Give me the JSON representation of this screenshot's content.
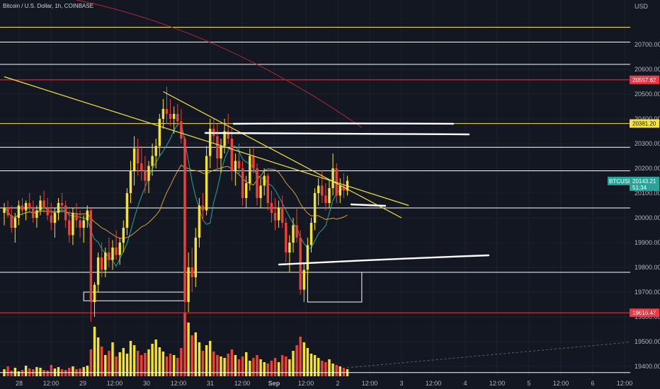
{
  "header": {
    "title": "Bitcoin / U.S. Dollar, 1h, COINBASE",
    "currency": "USD"
  },
  "colors": {
    "background": "#131722",
    "bull": "#f5e32a",
    "bear": "#ef4136",
    "grid": "#1e222d",
    "white_line": "#ffffff",
    "yellow_line": "#f6e33c",
    "red_line": "#f23645",
    "teal_ma": "#26a69a",
    "orange_ma": "#d7a032",
    "red_ma": "#b22833"
  },
  "chart_data": {
    "type": "candlestick",
    "ylim": [
      19360,
      20880
    ],
    "y_ticks": [
      20700,
      20600,
      20500,
      20400,
      20300,
      20200,
      20100,
      20000,
      19900,
      19800,
      19700,
      19600,
      19500,
      19400
    ],
    "x_ticks": [
      "28",
      "12:00",
      "29",
      "12:00",
      "30",
      "12:00",
      "31",
      "12:00",
      "Sep",
      "12:00",
      "2",
      "12:00",
      "3",
      "12:00",
      "4",
      "12:00",
      "5",
      "12:00",
      "6",
      "12:00"
    ],
    "symbol_badge": {
      "label": "BTCUSD",
      "price": "20143.21",
      "countdown": "51:34"
    },
    "price_badges": [
      {
        "value": 20557.62,
        "label": "20557.62",
        "color": "#f23645"
      },
      {
        "value": 20381.2,
        "label": "20381.20",
        "color": "#f6e33c"
      },
      {
        "value": 19616.47,
        "label": "19616.47",
        "color": "#f23645"
      }
    ],
    "horizontal_lines": [
      {
        "value": 20770,
        "color": "#f6e33c"
      },
      {
        "value": 20710,
        "color": "#ffffff"
      },
      {
        "value": 20620,
        "color": "#ffffff"
      },
      {
        "value": 20557.62,
        "color": "#f23645"
      },
      {
        "value": 20381.2,
        "color": "#f6e33c"
      },
      {
        "value": 20285,
        "color": "#ffffff"
      },
      {
        "value": 20190,
        "color": "#ffffff"
      },
      {
        "value": 20040,
        "color": "#ffffff"
      },
      {
        "value": 19780,
        "color": "#ffffff"
      },
      {
        "value": 19616.47,
        "color": "#f23645"
      },
      {
        "value": 19375,
        "color": "#ffffff"
      }
    ],
    "candles": [
      [
        20020,
        20060,
        19970,
        20040
      ],
      [
        20040,
        20070,
        20000,
        20010
      ],
      [
        20010,
        20050,
        19940,
        19960
      ],
      [
        19960,
        20020,
        19900,
        20000
      ],
      [
        20000,
        20070,
        19970,
        20050
      ],
      [
        20050,
        20080,
        20010,
        20030
      ],
      [
        20030,
        20070,
        19990,
        20060
      ],
      [
        20060,
        20100,
        20020,
        20040
      ],
      [
        20040,
        20070,
        19980,
        20000
      ],
      [
        20000,
        20050,
        19960,
        20030
      ],
      [
        20030,
        20090,
        20010,
        20070
      ],
      [
        20070,
        20110,
        20020,
        20040
      ],
      [
        20040,
        20080,
        19990,
        20010
      ],
      [
        20010,
        20060,
        19950,
        19980
      ],
      [
        19980,
        20040,
        19920,
        20020
      ],
      [
        20020,
        20080,
        19990,
        20060
      ],
      [
        20060,
        20100,
        20020,
        20050
      ],
      [
        20050,
        20070,
        19960,
        19990
      ],
      [
        19990,
        20030,
        19900,
        19930
      ],
      [
        19930,
        20040,
        19890,
        20020
      ],
      [
        20020,
        20060,
        19960,
        19990
      ],
      [
        19990,
        20030,
        19920,
        19960
      ],
      [
        19960,
        20010,
        19900,
        19990
      ],
      [
        19990,
        20050,
        19960,
        20030
      ],
      [
        20030,
        20040,
        19580,
        19660
      ],
      [
        19660,
        19740,
        19600,
        19730
      ],
      [
        19730,
        19860,
        19700,
        19840
      ],
      [
        19840,
        19900,
        19760,
        19790
      ],
      [
        19790,
        19880,
        19760,
        19860
      ],
      [
        19860,
        19920,
        19800,
        19830
      ],
      [
        19830,
        19910,
        19790,
        19880
      ],
      [
        19880,
        19950,
        19830,
        19850
      ],
      [
        19850,
        19920,
        19810,
        19900
      ],
      [
        19900,
        19990,
        19860,
        19960
      ],
      [
        19960,
        20120,
        19930,
        20100
      ],
      [
        20100,
        20230,
        20060,
        20190
      ],
      [
        20190,
        20330,
        20130,
        20280
      ],
      [
        20280,
        20320,
        20170,
        20220
      ],
      [
        20220,
        20290,
        20150,
        20190
      ],
      [
        20190,
        20250,
        20100,
        20150
      ],
      [
        20150,
        20230,
        20100,
        20210
      ],
      [
        20210,
        20300,
        20170,
        20250
      ],
      [
        20250,
        20320,
        20200,
        20290
      ],
      [
        20290,
        20420,
        20250,
        20400
      ],
      [
        20400,
        20480,
        20360,
        20440
      ],
      [
        20440,
        20530,
        20380,
        20420
      ],
      [
        20420,
        20480,
        20370,
        20400
      ],
      [
        20400,
        20450,
        20340,
        20420
      ],
      [
        20420,
        20460,
        20370,
        20390
      ],
      [
        20390,
        20440,
        20300,
        20320
      ],
      [
        20320,
        20330,
        19610,
        19660
      ],
      [
        19660,
        19860,
        19620,
        19800
      ],
      [
        19800,
        19880,
        19700,
        19760
      ],
      [
        19760,
        19960,
        19720,
        19920
      ],
      [
        19920,
        20080,
        19880,
        20050
      ],
      [
        20050,
        20100,
        19990,
        20030
      ],
      [
        20030,
        20290,
        20010,
        20250
      ],
      [
        20250,
        20400,
        20200,
        20360
      ],
      [
        20360,
        20400,
        20300,
        20330
      ],
      [
        20330,
        20380,
        20200,
        20240
      ],
      [
        20240,
        20320,
        20180,
        20290
      ],
      [
        20290,
        20400,
        20260,
        20350
      ],
      [
        20350,
        20420,
        20300,
        20320
      ],
      [
        20320,
        20360,
        20150,
        20190
      ],
      [
        20190,
        20260,
        20130,
        20230
      ],
      [
        20230,
        20300,
        20170,
        20200
      ],
      [
        20200,
        20230,
        20050,
        20080
      ],
      [
        20080,
        20170,
        20040,
        20140
      ],
      [
        20140,
        20280,
        20110,
        20250
      ],
      [
        20250,
        20290,
        20180,
        20200
      ],
      [
        20200,
        20220,
        20050,
        20080
      ],
      [
        20080,
        20160,
        20040,
        20130
      ],
      [
        20130,
        20200,
        20090,
        20170
      ],
      [
        20170,
        20180,
        20030,
        20060
      ],
      [
        20060,
        20110,
        19980,
        20020
      ],
      [
        20020,
        20080,
        19950,
        19990
      ],
      [
        19990,
        20070,
        19960,
        20040
      ],
      [
        20040,
        20090,
        19960,
        19980
      ],
      [
        19980,
        20000,
        19820,
        19860
      ],
      [
        19860,
        19930,
        19780,
        19900
      ],
      [
        19900,
        20000,
        19860,
        19970
      ],
      [
        19970,
        20040,
        19900,
        19920
      ],
      [
        19920,
        19950,
        19690,
        19710
      ],
      [
        19710,
        19820,
        19660,
        19790
      ],
      [
        19790,
        19920,
        19760,
        19890
      ],
      [
        19890,
        20000,
        19860,
        19980
      ],
      [
        19980,
        20120,
        19950,
        20100
      ],
      [
        20100,
        20160,
        20050,
        20130
      ],
      [
        20130,
        20190,
        20060,
        20090
      ],
      [
        20090,
        20140,
        20030,
        20060
      ],
      [
        20060,
        20150,
        20040,
        20120
      ],
      [
        20120,
        20260,
        20090,
        20200
      ],
      [
        20200,
        20220,
        20060,
        20090
      ],
      [
        20090,
        20160,
        20060,
        20130
      ],
      [
        20130,
        20180,
        20080,
        20110
      ],
      [
        20110,
        20170,
        20090,
        20150
      ]
    ],
    "volumes": [
      10,
      14,
      8,
      12,
      7,
      9,
      15,
      11,
      10,
      13,
      12,
      9,
      8,
      16,
      11,
      13,
      10,
      9,
      12,
      14,
      10,
      11,
      13,
      15,
      38,
      70,
      55,
      42,
      30,
      36,
      48,
      28,
      34,
      40,
      32,
      50,
      44,
      36,
      30,
      33,
      38,
      46,
      52,
      41,
      35,
      28,
      32,
      30,
      26,
      40,
      90,
      76,
      58,
      62,
      48,
      36,
      44,
      50,
      35,
      30,
      28,
      26,
      32,
      38,
      30,
      24,
      28,
      34,
      22,
      26,
      30,
      24,
      20,
      18,
      22,
      26,
      20,
      30,
      28,
      24,
      36,
      44,
      56,
      48,
      40,
      32,
      30,
      26,
      22,
      20,
      24,
      18,
      16,
      14,
      12,
      10
    ],
    "annotations": {
      "downtrend_upper": {
        "from": [
          0,
          20570
        ],
        "to": [
          99,
          20110
        ]
      },
      "downtrend_lower": {
        "from": [
          -6,
          20510
        ],
        "to": [
          101,
          20030
        ]
      }
    }
  }
}
